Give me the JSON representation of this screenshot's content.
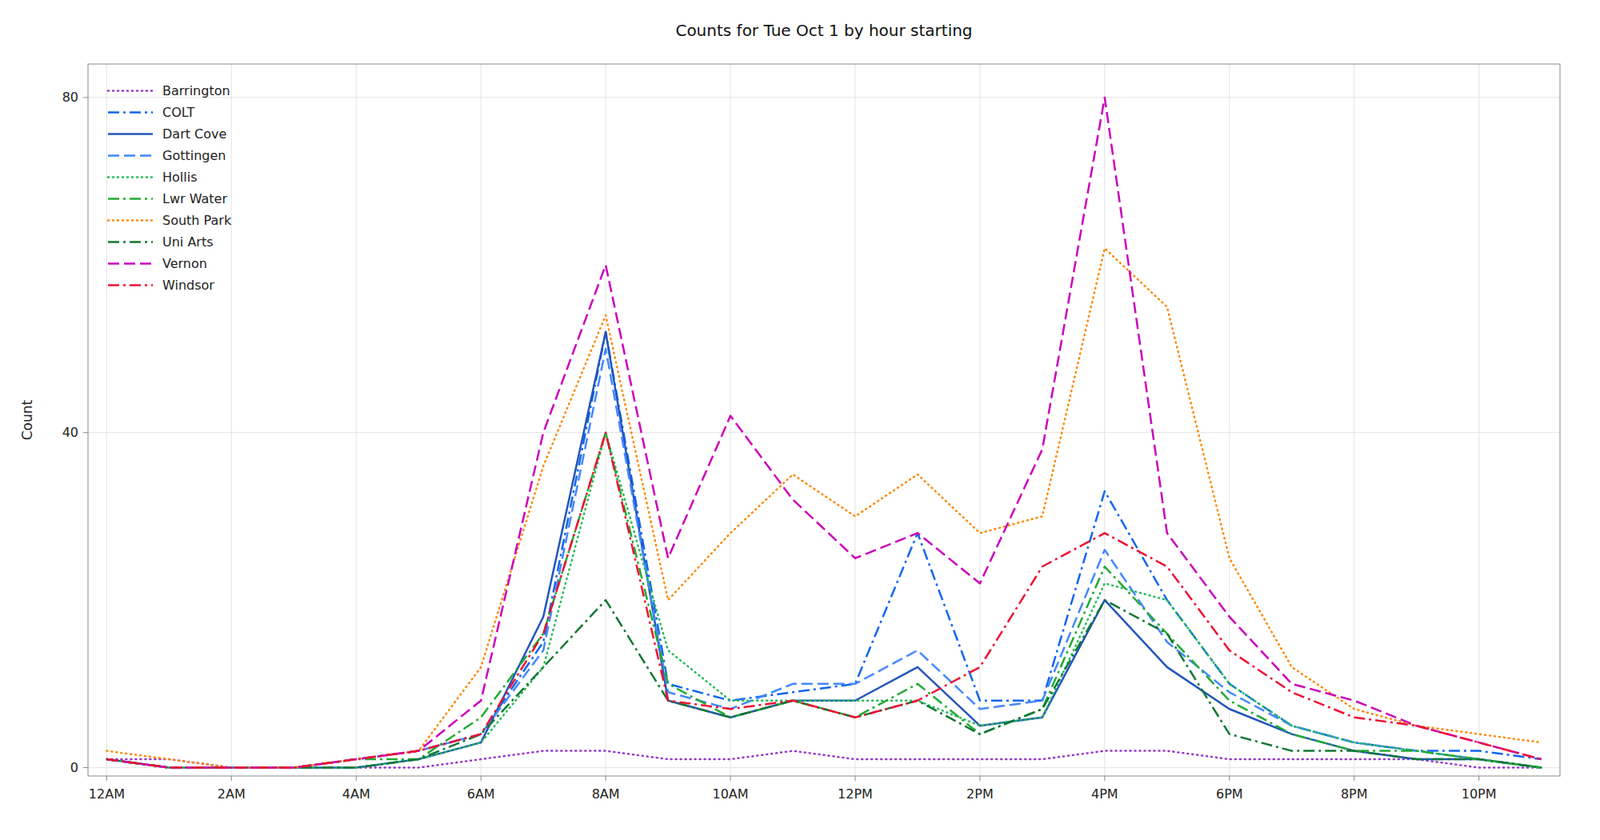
{
  "chart_data": {
    "type": "line",
    "title": "Counts for Tue Oct 1 by hour starting",
    "ylabel": "Count",
    "x": [
      0,
      1,
      2,
      3,
      4,
      5,
      6,
      7,
      8,
      9,
      10,
      11,
      12,
      13,
      14,
      15,
      16,
      17,
      18,
      19,
      20,
      21,
      22,
      23
    ],
    "xlim": [
      -0.3,
      23.3
    ],
    "xticks": [
      {
        "value": 0,
        "label": "12AM"
      },
      {
        "value": 2,
        "label": "2AM"
      },
      {
        "value": 4,
        "label": "4AM"
      },
      {
        "value": 6,
        "label": "6AM"
      },
      {
        "value": 8,
        "label": "8AM"
      },
      {
        "value": 10,
        "label": "10AM"
      },
      {
        "value": 12,
        "label": "12PM"
      },
      {
        "value": 14,
        "label": "2PM"
      },
      {
        "value": 16,
        "label": "4PM"
      },
      {
        "value": 18,
        "label": "6PM"
      },
      {
        "value": 20,
        "label": "8PM"
      },
      {
        "value": 22,
        "label": "10PM"
      }
    ],
    "ylim": [
      -1,
      84
    ],
    "yticks": [
      0,
      40,
      80
    ],
    "grid": true,
    "legend": "upper-left",
    "series": [
      {
        "name": "Barrington",
        "color": "#9933CC",
        "line_style": "dotted",
        "values": [
          1,
          1,
          0,
          0,
          0,
          0,
          1,
          2,
          2,
          1,
          1,
          2,
          1,
          1,
          1,
          1,
          2,
          2,
          1,
          1,
          1,
          1,
          0,
          0
        ]
      },
      {
        "name": "COLT",
        "color": "#1166EE",
        "line_style": "dashdot",
        "values": [
          1,
          0,
          0,
          0,
          1,
          2,
          4,
          15,
          52,
          10,
          8,
          9,
          10,
          28,
          8,
          8,
          33,
          20,
          10,
          5,
          3,
          2,
          2,
          1
        ]
      },
      {
        "name": "Dart Cove",
        "color": "#2255BB",
        "line_style": "solid",
        "values": [
          1,
          0,
          0,
          0,
          0,
          1,
          3,
          18,
          52,
          8,
          6,
          8,
          8,
          12,
          5,
          6,
          20,
          12,
          7,
          4,
          2,
          1,
          1,
          0
        ]
      },
      {
        "name": "Gottingen",
        "color": "#4488FF",
        "line_style": "dashed",
        "values": [
          1,
          0,
          0,
          0,
          1,
          2,
          4,
          14,
          50,
          9,
          7,
          10,
          10,
          14,
          7,
          8,
          26,
          15,
          9,
          5,
          3,
          2,
          1,
          0
        ]
      },
      {
        "name": "Hollis",
        "color": "#22BB55",
        "line_style": "dotted",
        "values": [
          1,
          0,
          0,
          0,
          0,
          1,
          3,
          12,
          40,
          14,
          8,
          8,
          8,
          8,
          5,
          6,
          22,
          20,
          10,
          5,
          3,
          2,
          1,
          0
        ]
      },
      {
        "name": "Lwr Water",
        "color": "#22AA33",
        "line_style": "dashdot",
        "values": [
          1,
          0,
          0,
          0,
          1,
          1,
          6,
          16,
          40,
          10,
          6,
          8,
          6,
          10,
          4,
          7,
          24,
          16,
          8,
          4,
          2,
          2,
          1,
          0
        ]
      },
      {
        "name": "South Park",
        "color": "#FF8800",
        "line_style": "dotted",
        "values": [
          2,
          1,
          0,
          0,
          1,
          2,
          12,
          36,
          54,
          20,
          28,
          35,
          30,
          35,
          28,
          30,
          62,
          55,
          25,
          12,
          7,
          5,
          4,
          3
        ]
      },
      {
        "name": "Uni Arts",
        "color": "#117733",
        "line_style": "dashdot",
        "values": [
          1,
          0,
          0,
          0,
          0,
          1,
          4,
          12,
          20,
          8,
          6,
          8,
          6,
          8,
          4,
          7,
          20,
          16,
          4,
          2,
          2,
          1,
          1,
          0
        ]
      },
      {
        "name": "Vernon",
        "color": "#CC00BB",
        "line_style": "dashed",
        "values": [
          1,
          0,
          0,
          0,
          1,
          2,
          8,
          40,
          60,
          25,
          42,
          32,
          25,
          28,
          22,
          38,
          80,
          28,
          18,
          10,
          8,
          5,
          3,
          1
        ]
      },
      {
        "name": "Windsor",
        "color": "#EE1133",
        "line_style": "dashdot",
        "values": [
          1,
          0,
          0,
          0,
          1,
          2,
          4,
          16,
          40,
          8,
          7,
          8,
          6,
          8,
          12,
          24,
          28,
          24,
          14,
          9,
          6,
          5,
          3,
          1
        ]
      }
    ]
  }
}
